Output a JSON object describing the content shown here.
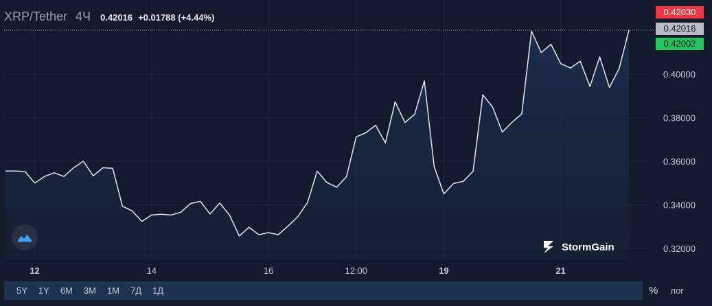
{
  "header": {
    "symbol": "XRP/Tether",
    "timeframe": "4Ч",
    "price": "0.42016",
    "change": "+0.01788 (+4.44%)"
  },
  "price_tags": {
    "high": "0.42030",
    "last": "0.42016",
    "low": "0.42002"
  },
  "brand": {
    "name": "StormGain"
  },
  "timeframe_buttons": [
    "5Y",
    "1Y",
    "6M",
    "3M",
    "1M",
    "7Д",
    "1Д"
  ],
  "right_buttons": {
    "percent": "%",
    "log": "лог"
  },
  "colors": {
    "background": "#131a2c",
    "line": "#e6e8ee",
    "area": "#1a2c48",
    "tag_red": "#f23645",
    "tag_green": "#22c55e",
    "tag_gray": "#b9bcc4"
  },
  "chart_data": {
    "type": "area",
    "title": "",
    "xlabel": "",
    "ylabel": "",
    "ylim": [
      0.317,
      0.425
    ],
    "y_ticks": [
      "0.32000",
      "0.34000",
      "0.36000",
      "0.38000",
      "0.40000"
    ],
    "y_tick_values": [
      0.32,
      0.34,
      0.36,
      0.38,
      0.4
    ],
    "x_ticks": [
      {
        "label": "12",
        "at": 3,
        "bold": true
      },
      {
        "label": "14",
        "at": 15,
        "bold": false
      },
      {
        "label": "16",
        "at": 27,
        "bold": false
      },
      {
        "label": "12:00",
        "at": 36,
        "bold": false
      },
      {
        "label": "19",
        "at": 45,
        "bold": true
      },
      {
        "label": "21",
        "at": 57,
        "bold": true
      }
    ],
    "grid": true,
    "last_price_line": 0.42016,
    "series": [
      {
        "values": [
          0.3555,
          0.3555,
          0.3553,
          0.35,
          0.353,
          0.3547,
          0.353,
          0.357,
          0.36,
          0.3533,
          0.357,
          0.3568,
          0.3394,
          0.3372,
          0.3324,
          0.3353,
          0.3357,
          0.3353,
          0.3366,
          0.3406,
          0.3416,
          0.3358,
          0.3408,
          0.3353,
          0.3257,
          0.3297,
          0.3263,
          0.3272,
          0.3263,
          0.3302,
          0.3345,
          0.341,
          0.3555,
          0.3502,
          0.3481,
          0.3529,
          0.3712,
          0.3731,
          0.3765,
          0.3684,
          0.3873,
          0.3778,
          0.3815,
          0.3969,
          0.3576,
          0.345,
          0.3498,
          0.3508,
          0.3554,
          0.3905,
          0.3849,
          0.3734,
          0.3779,
          0.3817,
          0.4197,
          0.4099,
          0.4137,
          0.4048,
          0.4028,
          0.4059,
          0.3943,
          0.4079,
          0.3939,
          0.4026,
          0.4202
        ]
      }
    ]
  }
}
